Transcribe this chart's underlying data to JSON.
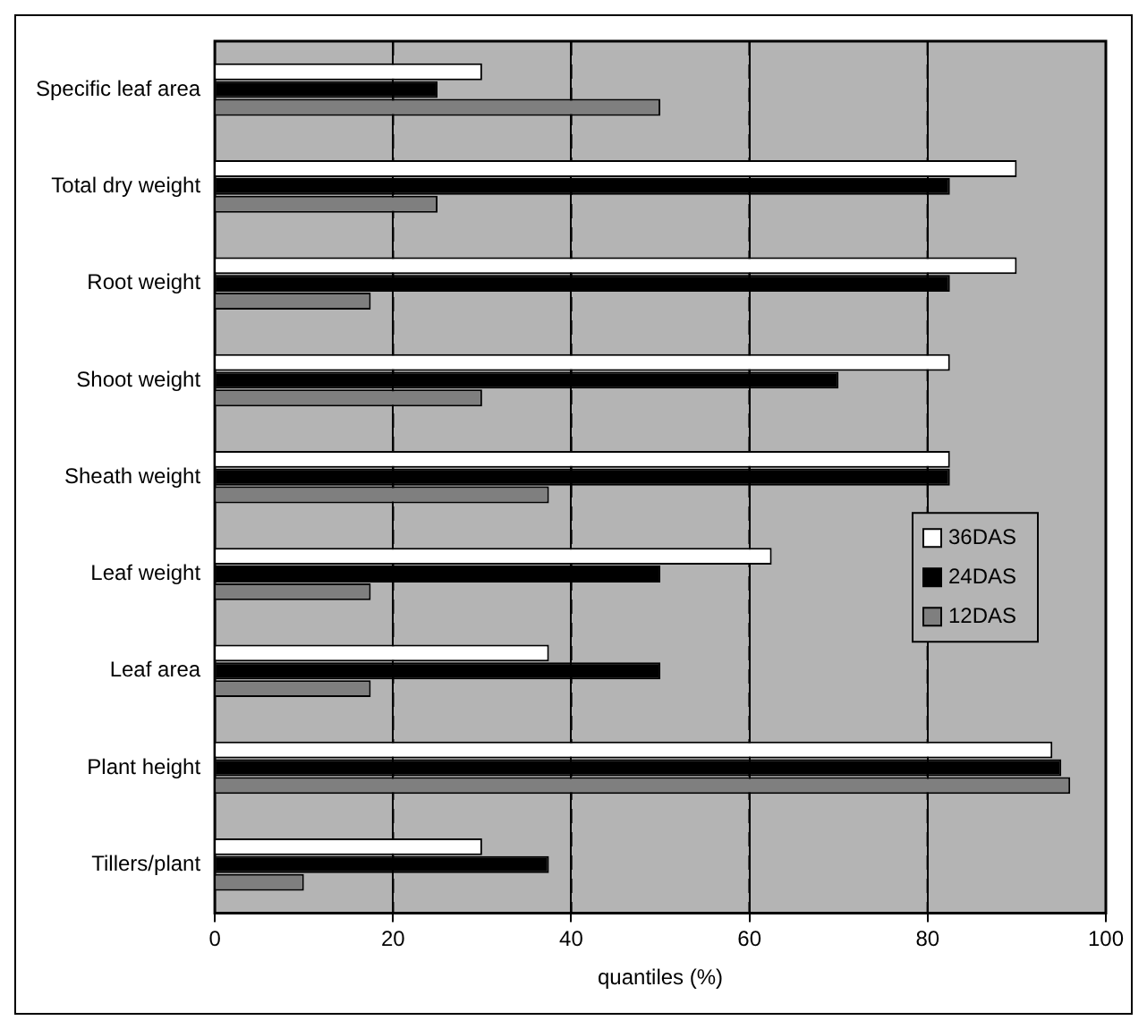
{
  "chart_data": {
    "type": "bar",
    "orientation": "horizontal",
    "xlabel": "quantiles (%)",
    "categories": [
      "Specific leaf area",
      "Total dry weight",
      "Root weight",
      "Shoot weight",
      "Sheath weight",
      "Leaf weight",
      "Leaf area",
      "Plant height",
      "Tillers/plant"
    ],
    "series": [
      {
        "name": "36DAS",
        "color": "#ffffff",
        "values": [
          30,
          90,
          90,
          82.5,
          82.5,
          62.5,
          37.5,
          94,
          30
        ]
      },
      {
        "name": "24DAS",
        "color": "#000000",
        "values": [
          25,
          82.5,
          82.5,
          70,
          82.5,
          50,
          50,
          95,
          37.5
        ]
      },
      {
        "name": "12DAS",
        "color": "#7f7f7f",
        "values": [
          50,
          25,
          17.5,
          30,
          37.5,
          17.5,
          17.5,
          96,
          10
        ]
      }
    ],
    "xlim": [
      0,
      100
    ],
    "xticks": [
      0,
      20,
      40,
      60,
      80,
      100
    ],
    "grid": "x",
    "legend": "right"
  }
}
